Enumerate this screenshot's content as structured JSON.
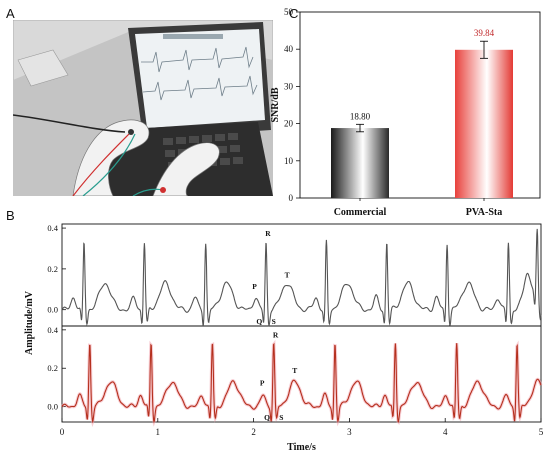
{
  "panels": {
    "a": "A",
    "b": "B",
    "c": "C"
  },
  "chart_data": [
    {
      "type": "bar",
      "panel": "C",
      "categories": [
        "Commercial",
        "PVA-Sta"
      ],
      "values": [
        18.8,
        39.84
      ],
      "value_labels": [
        "18.80",
        "39.84"
      ],
      "errors": [
        1.0,
        2.3
      ],
      "ylabel": "SNR/dB",
      "xlabel": "",
      "ylim": [
        0,
        50
      ],
      "yticks": [
        "0",
        "10",
        "20",
        "30",
        "40",
        "50"
      ],
      "colors": {
        "commercial": "#3a3a3a",
        "pva": "#e8413c",
        "value_label_pva": "#c0282a"
      }
    },
    {
      "type": "line",
      "panel": "B",
      "xlabel": "Time/s",
      "ylabel": "Amplitude/mV",
      "xlim": [
        0,
        5
      ],
      "xticks": [
        "0",
        "1",
        "2",
        "3",
        "4",
        "5"
      ],
      "ylim": [
        -0.08,
        0.42
      ],
      "yticks": [
        "0.0",
        "0.2",
        "0.4"
      ],
      "series": [
        {
          "color": "#555555",
          "r_peaks": [
            0.23,
            0.86,
            1.5,
            2.13,
            2.76,
            3.39,
            4.02,
            4.66,
            4.96
          ]
        },
        {
          "color": "#b5301e",
          "r_peaks": [
            0.29,
            0.93,
            1.57,
            2.21,
            2.85,
            3.48,
            4.12,
            4.75
          ]
        }
      ],
      "wave_labels": [
        "P",
        "Q",
        "R",
        "S",
        "T"
      ]
    }
  ]
}
